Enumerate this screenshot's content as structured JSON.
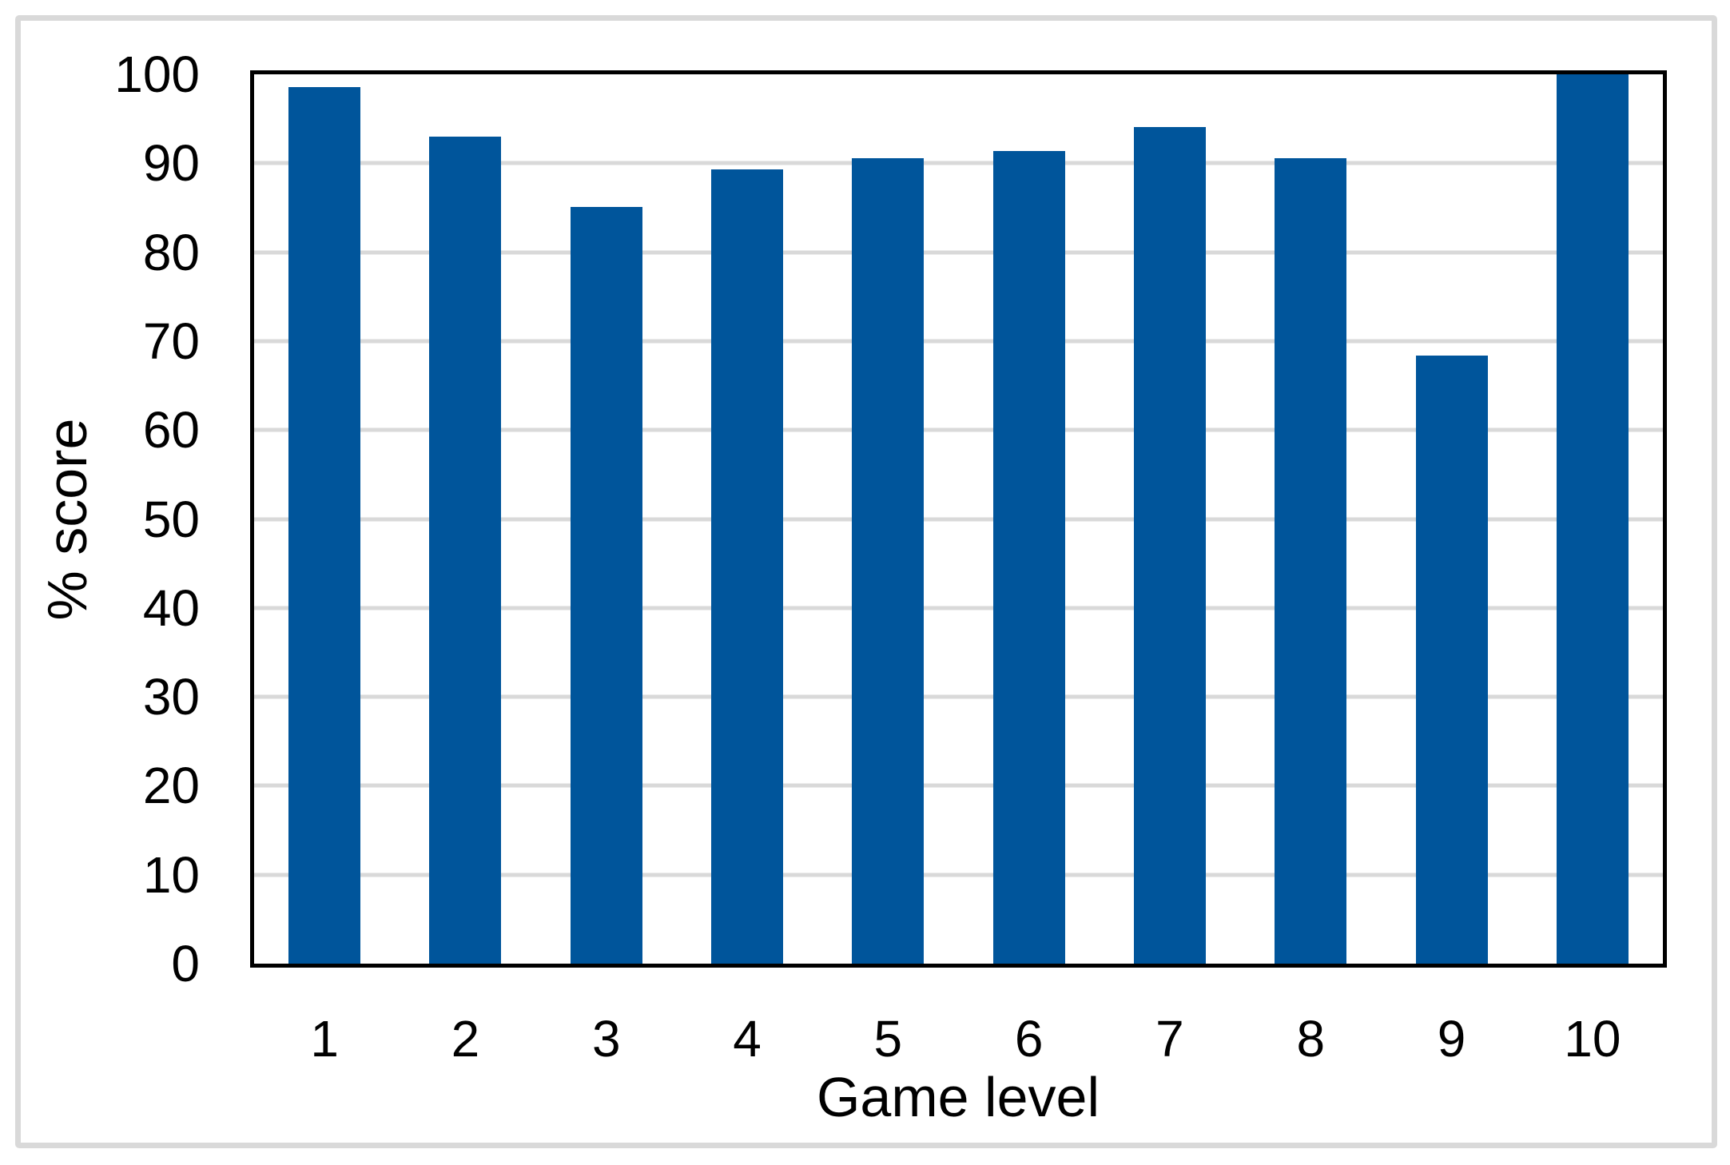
{
  "chart_data": {
    "type": "bar",
    "categories": [
      "1",
      "2",
      "3",
      "4",
      "5",
      "6",
      "7",
      "8",
      "9",
      "10"
    ],
    "values": [
      98.6,
      93.0,
      85.1,
      89.3,
      90.6,
      91.4,
      94.1,
      90.6,
      68.4,
      100.0
    ],
    "title": "",
    "xlabel": "Game level",
    "ylabel": "% score",
    "ylim": [
      0,
      100
    ],
    "ytick_step": 10,
    "ytick_labels": [
      "0",
      "10",
      "20",
      "30",
      "40",
      "50",
      "60",
      "70",
      "80",
      "90",
      "100"
    ],
    "grid": true,
    "legend": "none",
    "bar_color": "#00559B",
    "gridline_color": "#D9D9D9",
    "axis_line_color": "#000000",
    "figure_border_color": "#D9D9D9",
    "background_color": "#FFFFFF"
  }
}
